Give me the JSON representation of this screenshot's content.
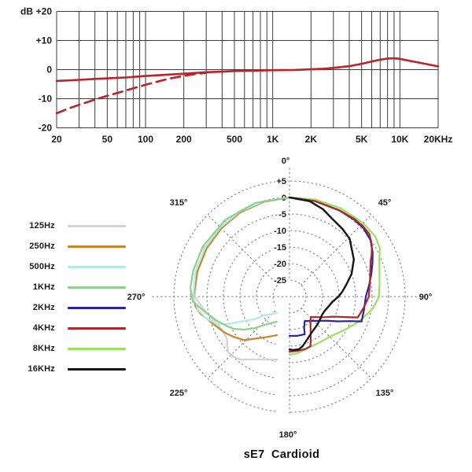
{
  "chart_data": [
    {
      "type": "line",
      "name": "frequency-response",
      "y_axis_unit": "dB",
      "y_tick_values": [
        20,
        10,
        0,
        -10,
        -20
      ],
      "y_tick_labels": [
        "+20",
        "+10",
        "0",
        "-10",
        "-20"
      ],
      "x_tick_values": [
        20,
        50,
        100,
        200,
        500,
        1000,
        2000,
        5000,
        10000,
        20000
      ],
      "x_tick_labels": [
        "20",
        "50",
        "100",
        "200",
        "500",
        "1K",
        "2K",
        "5K",
        "10K",
        "20KHz"
      ],
      "x_range_hz": [
        20,
        20000
      ],
      "y_range_db": [
        -20,
        20
      ],
      "grid": true,
      "curve_color": "#ba2327",
      "series": [
        {
          "name": "on-axis response",
          "style": "solid",
          "points_hz_db": [
            [
              20,
              -3.9
            ],
            [
              30,
              -3.5
            ],
            [
              40,
              -3.2
            ],
            [
              50,
              -3.0
            ],
            [
              70,
              -2.7
            ],
            [
              100,
              -2.2
            ],
            [
              140,
              -1.8
            ],
            [
              200,
              -1.4
            ],
            [
              300,
              -0.9
            ],
            [
              400,
              -0.7
            ],
            [
              500,
              -0.5
            ],
            [
              700,
              -0.35
            ],
            [
              1000,
              -0.2
            ],
            [
              1500,
              -0.1
            ],
            [
              2000,
              0.1
            ],
            [
              2500,
              0.3
            ],
            [
              3000,
              0.6
            ],
            [
              4000,
              1.2
            ],
            [
              5000,
              2.0
            ],
            [
              6000,
              2.8
            ],
            [
              7000,
              3.4
            ],
            [
              8000,
              3.8
            ],
            [
              9000,
              3.9
            ],
            [
              10000,
              3.7
            ],
            [
              12000,
              3.0
            ],
            [
              15000,
              2.2
            ],
            [
              20000,
              1.1
            ]
          ]
        },
        {
          "name": "bass roll-off (dashed)",
          "style": "dashed",
          "points_hz_db": [
            [
              20,
              -15.0
            ],
            [
              25,
              -13.3
            ],
            [
              30,
              -12.1
            ],
            [
              40,
              -10.3
            ],
            [
              50,
              -9.0
            ],
            [
              60,
              -8.0
            ],
            [
              70,
              -7.2
            ],
            [
              80,
              -6.4
            ],
            [
              90,
              -5.8
            ],
            [
              100,
              -5.2
            ],
            [
              120,
              -4.3
            ],
            [
              150,
              -3.2
            ],
            [
              180,
              -2.5
            ],
            [
              210,
              -2.0
            ],
            [
              250,
              -1.5
            ],
            [
              300,
              -1.1
            ]
          ]
        }
      ]
    },
    {
      "type": "polar",
      "name": "polar-pattern",
      "title": "sE7  Cardioid",
      "ring_values_db": [
        5,
        0,
        -5,
        -10,
        -15,
        -20,
        -25
      ],
      "ring_labels": [
        "+5",
        "0",
        "-5",
        "-10",
        "-15",
        "-20",
        "-25"
      ],
      "angle_values_deg": [
        0,
        45,
        90,
        135,
        180,
        225,
        270,
        315
      ],
      "angle_labels": [
        "0°",
        "45°",
        "90°",
        "135°",
        "180°",
        "225°",
        "270°",
        "315°"
      ],
      "grid": "dotted",
      "legend": {
        "items": [
          {
            "label": "125Hz",
            "color": "#d3d3d3"
          },
          {
            "label": "250Hz",
            "color": "#c9842e"
          },
          {
            "label": "500Hz",
            "color": "#b4ebe2"
          },
          {
            "label": "1KHz",
            "color": "#8ed08e"
          },
          {
            "label": "2KHz",
            "color": "#2a23a8"
          },
          {
            "label": "4KHz",
            "color": "#a92b2b"
          },
          {
            "label": "8KHz",
            "color": "#9ddf5f"
          },
          {
            "label": "16KHz",
            "color": "#151515"
          }
        ]
      },
      "series": [
        {
          "name": "125Hz",
          "color": "#d3d3d3",
          "width": 2.2,
          "points_deg_db": [
            [
              0,
              0
            ],
            [
              345,
              -0.2
            ],
            [
              330,
              -0.4
            ],
            [
              315,
              -0.6
            ],
            [
              300,
              -0.9
            ],
            [
              285,
              -1.1
            ],
            [
              270,
              -1.4
            ],
            [
              267,
              -2.3
            ],
            [
              263,
              -3.4
            ],
            [
              257,
              -4.9
            ],
            [
              250,
              -6.5
            ],
            [
              243,
              -7.3
            ],
            [
              236,
              -7.1
            ],
            [
              228,
              -4.9
            ],
            [
              223,
              -5.2
            ],
            [
              218,
              -5.8
            ],
            [
              211,
              -7.8
            ],
            [
              202,
              -9.4
            ],
            [
              191,
              -10.6
            ]
          ]
        },
        {
          "name": "250Hz",
          "color": "#c9842e",
          "width": 2.2,
          "points_deg_db": [
            [
              0,
              0
            ],
            [
              345,
              -0.3
            ],
            [
              330,
              -0.5
            ],
            [
              315,
              -0.8
            ],
            [
              300,
              -1.0
            ],
            [
              285,
              -1.1
            ],
            [
              270,
              -0.9
            ],
            [
              264,
              -1.4
            ],
            [
              259,
              -2.6
            ],
            [
              251,
              -5.3
            ],
            [
              241,
              -7.5
            ],
            [
              234,
              -9.2
            ],
            [
              226,
              -11.0
            ],
            [
              220,
              -13.3
            ],
            [
              211,
              -15.6
            ],
            [
              198,
              -17.7
            ]
          ]
        },
        {
          "name": "500Hz",
          "color": "#b4ebe2",
          "width": 2.2,
          "points_deg_db": [
            [
              0,
              0
            ],
            [
              345,
              -0.1
            ],
            [
              330,
              -0.2
            ],
            [
              315,
              -0.4
            ],
            [
              300,
              -0.5
            ],
            [
              285,
              -0.6
            ],
            [
              270,
              -0.8
            ],
            [
              262,
              -2.0
            ],
            [
              255,
              -4.0
            ],
            [
              249,
              -7.0
            ],
            [
              246,
              -9.5
            ],
            [
              243,
              -13.2
            ],
            [
              237,
              -17.5
            ],
            [
              233,
              -20.8
            ],
            [
              226,
              -22.4
            ],
            [
              217,
              -23.7
            ]
          ]
        },
        {
          "name": "1KHz",
          "color": "#8ed08e",
          "width": 2.2,
          "points_deg_db": [
            [
              0,
              0
            ],
            [
              340,
              0.2
            ],
            [
              320,
              0.3
            ],
            [
              300,
              0.3
            ],
            [
              285,
              0.2
            ],
            [
              275,
              0.1
            ],
            [
              267,
              -0.7
            ],
            [
              260,
              -3.9
            ],
            [
              252,
              -6.7
            ],
            [
              245,
              -9.0
            ],
            [
              240,
              -10.5
            ],
            [
              234,
              -13.0
            ],
            [
              228,
              -15.7
            ],
            [
              221,
              -18.7
            ],
            [
              207,
              -21.5
            ]
          ]
        },
        {
          "name": "8KHz",
          "color": "#9ddf5f",
          "width": 2.2,
          "points_deg_db": [
            [
              0,
              0
            ],
            [
              15,
              0.4
            ],
            [
              30,
              0.9
            ],
            [
              45,
              1.5
            ],
            [
              55,
              1.7
            ],
            [
              62,
              1.0
            ],
            [
              68,
              -0.7
            ],
            [
              75,
              -1.8
            ],
            [
              82,
              -2.5
            ],
            [
              90,
              -2.9
            ],
            [
              98,
              -4.5
            ],
            [
              105,
              -6.5
            ],
            [
              112,
              -8.3
            ],
            [
              120,
              -10.3
            ],
            [
              127,
              -11.7
            ],
            [
              134,
              -12.7
            ],
            [
              148,
              -13.4
            ],
            [
              162,
              -13.4
            ],
            [
              172,
              -12.7
            ],
            [
              180,
              -12.4
            ]
          ]
        },
        {
          "name": "2KHz",
          "color": "#2a23a8",
          "width": 2.2,
          "points_deg_db": [
            [
              0,
              0
            ],
            [
              15,
              -0.1
            ],
            [
              30,
              0.1
            ],
            [
              40,
              0.4
            ],
            [
              47,
              0.5
            ],
            [
              55,
              -0.1
            ],
            [
              62,
              -1.5
            ],
            [
              68,
              -2.9
            ],
            [
              75,
              -4.4
            ],
            [
              82,
              -5.7
            ],
            [
              90,
              -6.9
            ],
            [
              100,
              -7.1
            ],
            [
              109,
              -6.9
            ],
            [
              112,
              -10.2
            ],
            [
              117,
              -13.5
            ],
            [
              123,
              -16.6
            ],
            [
              134,
              -19.4
            ],
            [
              148,
              -21.3
            ],
            [
              155,
              -19.5
            ],
            [
              158,
              -17.7
            ],
            [
              169,
              -17.9
            ],
            [
              180,
              -18.1
            ]
          ]
        },
        {
          "name": "4KHz",
          "color": "#a92b2b",
          "width": 2.2,
          "points_deg_db": [
            [
              0,
              0
            ],
            [
              15,
              -0.1
            ],
            [
              30,
              0.2
            ],
            [
              40,
              0.6
            ],
            [
              46,
              0.8
            ],
            [
              52,
              0.7
            ],
            [
              58,
              -0.6
            ],
            [
              63,
              -2.1
            ],
            [
              66,
              -3.1
            ],
            [
              72,
              -4.3
            ],
            [
              80,
              -5.3
            ],
            [
              90,
              -6.0
            ],
            [
              98,
              -7.2
            ],
            [
              107,
              -8.4
            ],
            [
              110,
              -11.8
            ],
            [
              114,
              -15.1
            ],
            [
              122,
              -18.2
            ],
            [
              134,
              -21.1
            ],
            [
              145,
              -18.9
            ],
            [
              152,
              -16.3
            ],
            [
              157,
              -13.7
            ],
            [
              163,
              -13.4
            ],
            [
              172,
              -13.4
            ],
            [
              180,
              -13.3
            ]
          ]
        },
        {
          "name": "16KHz",
          "color": "#151515",
          "width": 2.4,
          "points_deg_db": [
            [
              0,
              0
            ],
            [
              12,
              -0.5
            ],
            [
              21,
              -1.7
            ],
            [
              28,
              -3.0
            ],
            [
              38,
              -4.0
            ],
            [
              46,
              -4.7
            ],
            [
              60,
              -7.5
            ],
            [
              70,
              -10.0
            ],
            [
              78,
              -12.4
            ],
            [
              85,
              -14.0
            ],
            [
              90,
              -15.2
            ],
            [
              97,
              -16.9
            ],
            [
              105,
              -17.9
            ],
            [
              112,
              -18.5
            ],
            [
              119,
              -18.7
            ],
            [
              128,
              -18.4
            ],
            [
              136,
              -18.0
            ],
            [
              145,
              -17.5
            ],
            [
              152,
              -16.8
            ],
            [
              158,
              -15.9
            ],
            [
              165,
              -14.5
            ],
            [
              170,
              -13.8
            ],
            [
              176,
              -13.8
            ],
            [
              180,
              -14.0
            ]
          ]
        }
      ]
    }
  ]
}
